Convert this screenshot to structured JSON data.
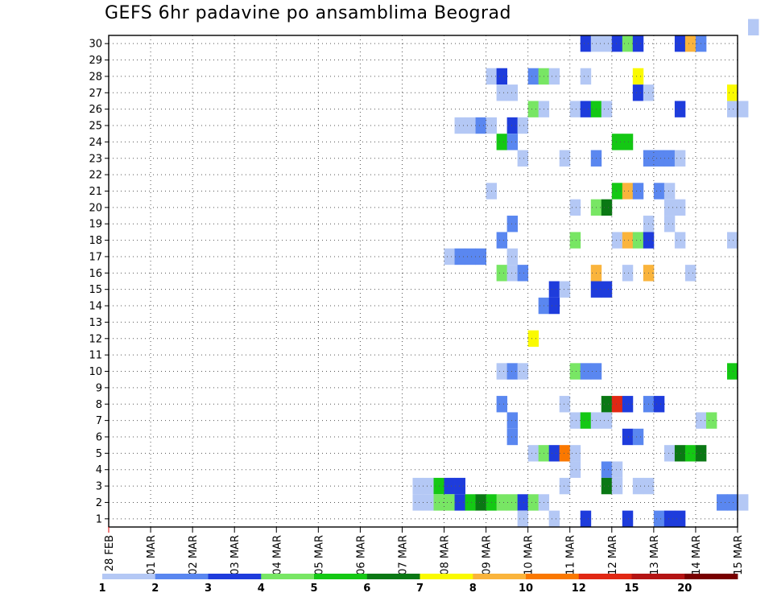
{
  "chart_data": {
    "type": "heatmap",
    "title": "GEFS 6hr padavine po ansamblima Beograd",
    "xlabel": "",
    "ylabel": "",
    "x_tick_labels": [
      "28 FEB",
      "01 MAR",
      "02 MAR",
      "03 MAR",
      "04 MAR",
      "05 MAR",
      "06 MAR",
      "07 MAR",
      "08 MAR",
      "09 MAR",
      "10 MAR",
      "11 MAR",
      "12 MAR",
      "13 MAR",
      "14 MAR",
      "15 MAR"
    ],
    "y_tick_labels": [
      "1",
      "2",
      "3",
      "4",
      "5",
      "6",
      "7",
      "8",
      "9",
      "10",
      "11",
      "12",
      "13",
      "14",
      "15",
      "16",
      "17",
      "18",
      "19",
      "20",
      "21",
      "22",
      "23",
      "24",
      "25",
      "26",
      "27",
      "28",
      "29",
      "30"
    ],
    "xlim": [
      0,
      60
    ],
    "ylim": [
      0,
      30
    ],
    "grid": true,
    "legend": {
      "position": "bottom",
      "labels": [
        "1",
        "2",
        "3",
        "4",
        "5",
        "6",
        "7",
        "8",
        "10",
        "12",
        "15",
        "20"
      ],
      "colors": [
        "#b4c8f5",
        "#5a87f0",
        "#1e3cdc",
        "#78e664",
        "#14c814",
        "#0a7814",
        "#fafa00",
        "#fab43c",
        "#fa7800",
        "#e12814",
        "#b41414",
        "#780000"
      ]
    },
    "colorscale": {
      "levels": [
        1,
        2,
        3,
        4,
        5,
        6,
        7,
        8,
        10,
        12,
        15,
        20
      ],
      "colors": [
        "#b4c8f5",
        "#5a87f0",
        "#1e3cdc",
        "#78e664",
        "#14c814",
        "#0a7814",
        "#fafa00",
        "#fab43c",
        "#fa7800",
        "#e12814",
        "#b41414",
        "#780000"
      ]
    },
    "cells": [
      [
        61,
        30,
        1
      ],
      [
        45,
        29,
        3
      ],
      [
        46,
        29,
        1
      ],
      [
        47,
        29,
        1
      ],
      [
        48,
        29,
        3
      ],
      [
        49,
        29,
        4
      ],
      [
        50,
        29,
        3
      ],
      [
        54,
        29,
        3
      ],
      [
        55,
        29,
        9
      ],
      [
        56,
        29,
        2
      ],
      [
        36,
        27,
        1
      ],
      [
        37,
        27,
        3
      ],
      [
        40,
        27,
        2
      ],
      [
        41,
        27,
        4
      ],
      [
        42,
        27,
        1
      ],
      [
        45,
        27,
        1
      ],
      [
        50,
        27,
        7
      ],
      [
        37,
        26,
        1
      ],
      [
        38,
        26,
        1
      ],
      [
        50,
        26,
        3
      ],
      [
        51,
        26,
        1
      ],
      [
        59,
        26,
        7
      ],
      [
        40,
        25,
        4
      ],
      [
        41,
        25,
        1
      ],
      [
        44,
        25,
        1
      ],
      [
        45,
        25,
        3
      ],
      [
        46,
        25,
        5
      ],
      [
        47,
        25,
        1
      ],
      [
        54,
        25,
        3
      ],
      [
        59,
        25,
        1
      ],
      [
        60,
        25,
        1
      ],
      [
        38,
        24,
        3
      ],
      [
        39,
        24,
        1
      ],
      [
        33,
        24,
        1
      ],
      [
        34,
        24,
        1
      ],
      [
        35,
        24,
        2
      ],
      [
        36,
        24,
        1
      ],
      [
        37,
        23,
        5
      ],
      [
        38,
        23,
        2
      ],
      [
        48,
        23,
        5
      ],
      [
        49,
        23,
        5
      ],
      [
        39,
        22,
        1
      ],
      [
        46,
        22,
        2
      ],
      [
        43,
        22,
        1
      ],
      [
        51,
        22,
        2
      ],
      [
        52,
        22,
        2
      ],
      [
        53,
        22,
        2
      ],
      [
        54,
        22,
        1
      ],
      [
        36,
        20,
        1
      ],
      [
        48,
        20,
        5
      ],
      [
        49,
        20,
        9
      ],
      [
        50,
        20,
        2
      ],
      [
        52,
        20,
        2
      ],
      [
        53,
        20,
        1
      ],
      [
        44,
        19,
        1
      ],
      [
        46,
        19,
        4
      ],
      [
        47,
        19,
        6
      ],
      [
        53,
        19,
        1
      ],
      [
        54,
        19,
        1
      ],
      [
        38,
        18,
        2
      ],
      [
        51,
        18,
        1
      ],
      [
        53,
        18,
        1
      ],
      [
        37,
        17,
        2
      ],
      [
        44,
        17,
        4
      ],
      [
        48,
        17,
        1
      ],
      [
        49,
        17,
        9
      ],
      [
        50,
        17,
        4
      ],
      [
        51,
        17,
        3
      ],
      [
        54,
        17,
        1
      ],
      [
        59,
        17,
        1
      ],
      [
        38,
        16,
        1
      ],
      [
        32,
        16,
        1
      ],
      [
        33,
        16,
        2
      ],
      [
        34,
        16,
        2
      ],
      [
        35,
        16,
        2
      ],
      [
        37,
        15,
        4
      ],
      [
        38,
        15,
        1
      ],
      [
        39,
        15,
        2
      ],
      [
        46,
        15,
        8
      ],
      [
        49,
        15,
        1
      ],
      [
        51,
        15,
        8
      ],
      [
        55,
        15,
        1
      ],
      [
        42,
        14,
        3
      ],
      [
        43,
        14,
        1
      ],
      [
        46,
        14,
        3
      ],
      [
        47,
        14,
        3
      ],
      [
        41,
        13,
        2
      ],
      [
        42,
        13,
        3
      ],
      [
        40,
        11,
        7
      ],
      [
        37,
        9,
        1
      ],
      [
        38,
        9,
        2
      ],
      [
        39,
        9,
        1
      ],
      [
        44,
        9,
        4
      ],
      [
        45,
        9,
        2
      ],
      [
        46,
        9,
        2
      ],
      [
        59,
        9,
        5
      ],
      [
        37,
        7,
        2
      ],
      [
        43,
        7,
        1
      ],
      [
        47,
        7,
        6
      ],
      [
        48,
        7,
        12
      ],
      [
        49,
        7,
        3
      ],
      [
        51,
        7,
        2
      ],
      [
        52,
        7,
        3
      ],
      [
        38,
        6,
        2
      ],
      [
        44,
        6,
        1
      ],
      [
        45,
        6,
        5
      ],
      [
        46,
        6,
        1
      ],
      [
        47,
        6,
        1
      ],
      [
        56,
        6,
        1
      ],
      [
        57,
        6,
        4
      ],
      [
        38,
        5,
        2
      ],
      [
        49,
        5,
        3
      ],
      [
        50,
        5,
        2
      ],
      [
        40,
        4,
        1
      ],
      [
        41,
        4,
        4
      ],
      [
        42,
        4,
        3
      ],
      [
        43,
        4,
        10
      ],
      [
        44,
        4,
        1
      ],
      [
        53,
        4,
        1
      ],
      [
        54,
        4,
        6
      ],
      [
        55,
        4,
        5
      ],
      [
        56,
        4,
        6
      ],
      [
        44,
        3,
        1
      ],
      [
        47,
        3,
        2
      ],
      [
        48,
        3,
        1
      ],
      [
        29,
        2,
        1
      ],
      [
        30,
        2,
        1
      ],
      [
        31,
        2,
        5
      ],
      [
        32,
        2,
        3
      ],
      [
        33,
        2,
        3
      ],
      [
        43,
        2,
        1
      ],
      [
        47,
        2,
        6
      ],
      [
        48,
        2,
        1
      ],
      [
        50,
        2,
        1
      ],
      [
        51,
        2,
        1
      ],
      [
        29,
        1,
        1
      ],
      [
        30,
        1,
        1
      ],
      [
        31,
        1,
        4
      ],
      [
        32,
        1,
        4
      ],
      [
        33,
        1,
        3
      ],
      [
        34,
        1,
        5
      ],
      [
        35,
        1,
        6
      ],
      [
        36,
        1,
        5
      ],
      [
        37,
        1,
        4
      ],
      [
        38,
        1,
        4
      ],
      [
        39,
        1,
        3
      ],
      [
        40,
        1,
        4
      ],
      [
        41,
        1,
        1
      ],
      [
        58,
        1,
        2
      ],
      [
        59,
        1,
        2
      ],
      [
        60,
        1,
        1
      ],
      [
        39,
        0,
        1
      ],
      [
        42,
        0,
        1
      ],
      [
        45,
        0,
        3
      ],
      [
        49,
        0,
        3
      ],
      [
        52,
        0,
        2
      ],
      [
        53,
        0,
        3
      ],
      [
        54,
        0,
        3
      ]
    ]
  }
}
